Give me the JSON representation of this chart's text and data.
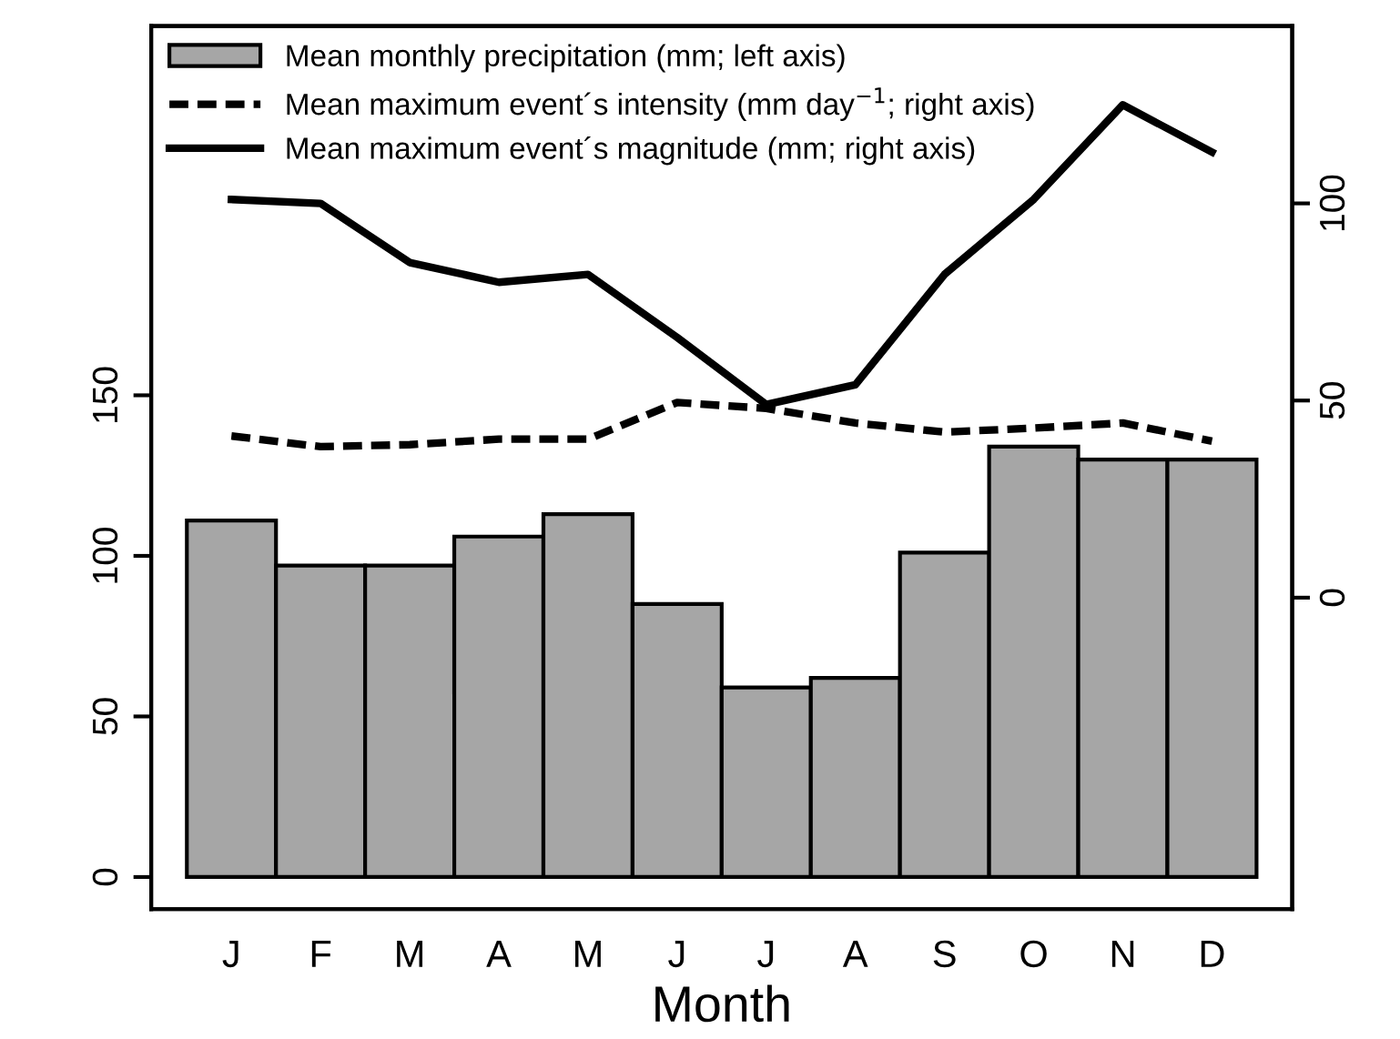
{
  "chart_data": {
    "type": "bar",
    "xlabel": "Month",
    "categories": [
      "J",
      "F",
      "M",
      "A",
      "M",
      "J",
      "J",
      "A",
      "S",
      "O",
      "N",
      "D"
    ],
    "ylim": [
      -10,
      265
    ],
    "yticks": [
      0,
      50,
      100,
      150
    ],
    "y2lim": [
      -79,
      145
    ],
    "y2ticks": [
      0,
      50,
      100
    ],
    "legend": "top left",
    "grid": false,
    "series": [
      {
        "name": "Mean monthly precipitation (mm; left axis)",
        "color": "#a6a6a6",
        "values": [
          111,
          97,
          97,
          106,
          113,
          85,
          59,
          62,
          101,
          134,
          130,
          130
        ]
      },
      {
        "name": "Mean maximum event´s intensity (mm day$^{−1}$; right axis)",
        "type": "line",
        "axis": "y2",
        "line_style": "dashed",
        "color": "#000000",
        "values": [
          41,
          38.3,
          38.8,
          40.2,
          40.2,
          49.5,
          48,
          44.3,
          42,
          43,
          44.3,
          39.7
        ]
      },
      {
        "name": "Mean maximum event´s magnitude (mm; right axis)",
        "type": "line",
        "axis": "y2",
        "line_style": "solid",
        "color": "#000000",
        "values": [
          101,
          100,
          85,
          80,
          82,
          66,
          49,
          54,
          82,
          101,
          125,
          113
        ]
      }
    ]
  }
}
